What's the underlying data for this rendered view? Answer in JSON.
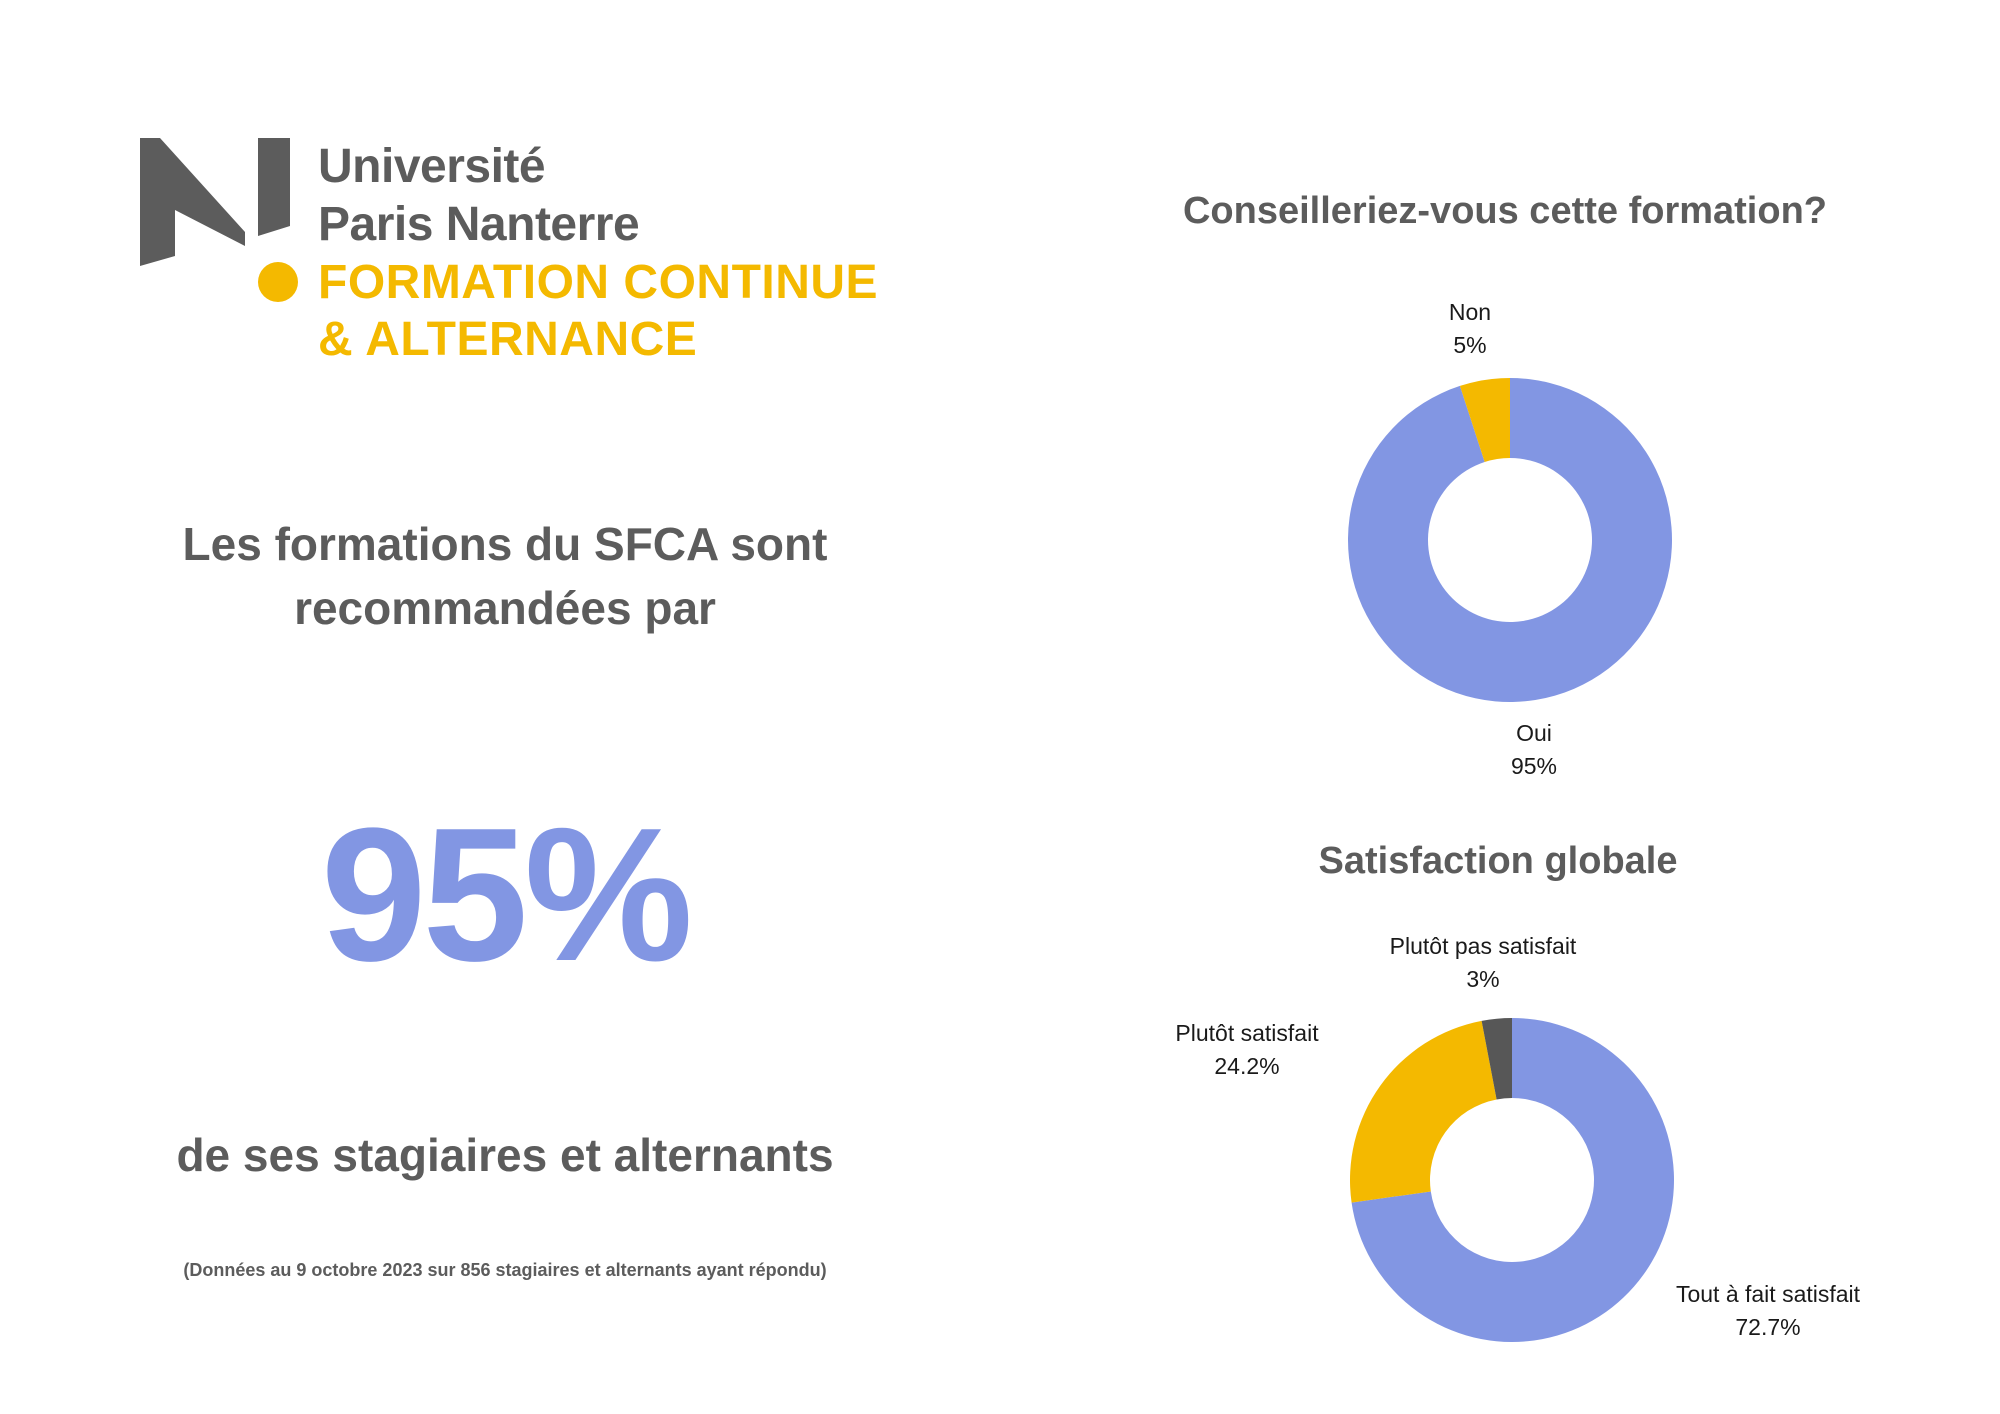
{
  "logo": {
    "line1": "Université",
    "line2": "Paris Nanterre",
    "line3": "FORMATION CONTINUE",
    "line4": "& ALTERNANCE"
  },
  "headline": {
    "line1": "Les formations du SFCA sont",
    "line2": "recommandées par"
  },
  "big_value": "95%",
  "subline": "de ses stagiaires et alternants",
  "footnote": "(Données au 9 octobre 2023 sur 856 stagiaires et alternants ayant répondu)",
  "colors": {
    "grey": "#5c5c5c",
    "blue": "#8296e3",
    "yellow": "#f4b900",
    "dark": "#575757"
  },
  "chart_data": [
    {
      "type": "pie",
      "title": "Conseilleriez-vous cette formation?",
      "categories": [
        "Oui",
        "Non"
      ],
      "values": [
        95,
        5
      ],
      "value_labels": [
        "95%",
        "5%"
      ],
      "colors": [
        "#8296e3",
        "#f4b900"
      ]
    },
    {
      "type": "pie",
      "title": "Satisfaction globale",
      "categories": [
        "Tout à fait satisfait",
        "Plutôt satisfait",
        "Plutôt pas satisfait"
      ],
      "values": [
        72.7,
        24.2,
        3
      ],
      "value_labels": [
        "72.7%",
        "24.2%",
        "3%"
      ],
      "colors": [
        "#8296e3",
        "#f4b900",
        "#575757"
      ]
    }
  ]
}
